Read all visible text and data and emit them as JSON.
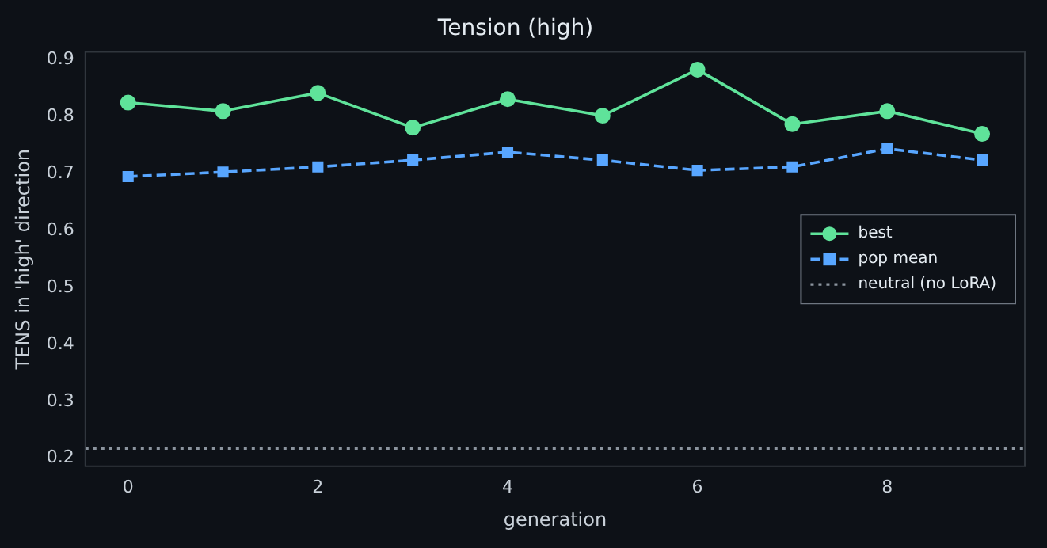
{
  "chart_data": {
    "type": "line",
    "title": "Tension (high)",
    "xlabel": "generation",
    "ylabel": "TENS in 'high' direction",
    "x": [
      0,
      1,
      2,
      3,
      4,
      5,
      6,
      7,
      8,
      9
    ],
    "series": [
      {
        "name": "best",
        "color": "#5fe39a",
        "marker": "circle",
        "line_style": "solid",
        "values": [
          0.825,
          0.81,
          0.842,
          0.781,
          0.831,
          0.802,
          0.883,
          0.787,
          0.81,
          0.77
        ]
      },
      {
        "name": "pop mean",
        "color": "#58a6ff",
        "marker": "square",
        "line_style": "dashed",
        "values": [
          0.695,
          0.703,
          0.712,
          0.724,
          0.738,
          0.724,
          0.706,
          0.712,
          0.744,
          0.724
        ]
      }
    ],
    "ref_lines": [
      {
        "axis": "y",
        "value": 0.217,
        "label": "neutral (no LoRA)",
        "color": "#8b949e",
        "line_style": "dotted"
      }
    ],
    "xlim": [
      -0.45,
      9.45
    ],
    "xticks": [
      0,
      2,
      4,
      6,
      8
    ],
    "ylim": [
      0.186,
      0.914
    ],
    "yticks": [
      0.2,
      0.3,
      0.4,
      0.5,
      0.6,
      0.7,
      0.8,
      0.9
    ],
    "grid": false,
    "legend": "right"
  }
}
